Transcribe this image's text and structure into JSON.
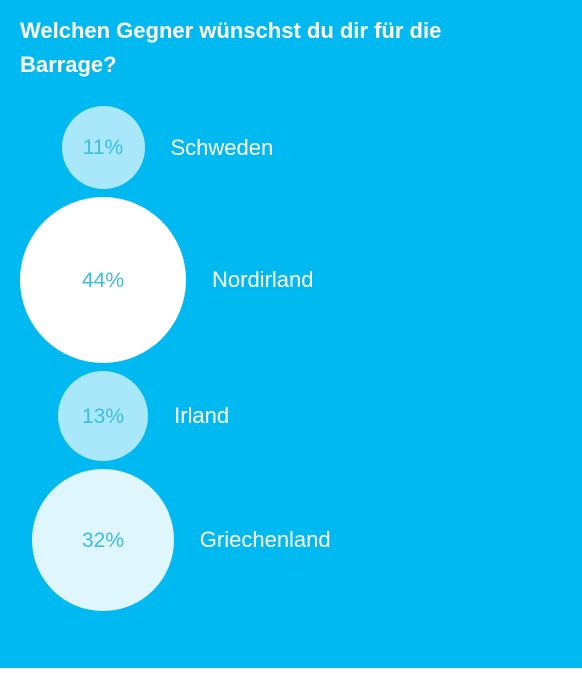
{
  "chart_data": {
    "type": "bubble",
    "title": "Welchen Gegner wünschst du dir für die Barrage?",
    "categories": [
      "Schweden",
      "Nordirland",
      "Irland",
      "Griechenland"
    ],
    "values": [
      11,
      44,
      13,
      32
    ],
    "value_labels": [
      "11%",
      "44%",
      "13%",
      "32%"
    ],
    "unit": "%"
  },
  "colors": {
    "background": "#00b9f1",
    "text": "#ffffff",
    "percent_text": "#3bbde8",
    "bubble_fills": [
      "#a8e8fa",
      "#ffffff",
      "#a8e8fa",
      "#dff6fd"
    ]
  }
}
